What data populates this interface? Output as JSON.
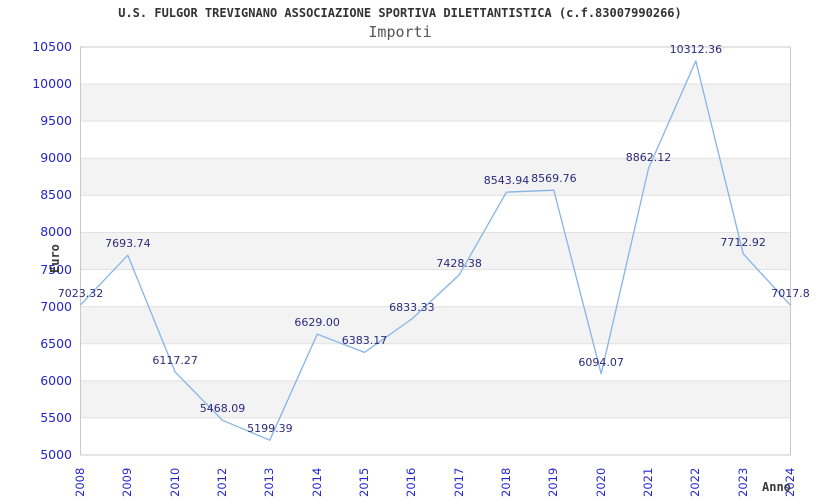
{
  "header": {
    "title": "U.S. FULGOR TREVIGNANO ASSOCIAZIONE SPORTIVA DILETTANTISTICA (c.f.83007990266)",
    "subtitle": "Importi"
  },
  "chart_data": {
    "type": "line",
    "title": "U.S. FULGOR TREVIGNANO ASSOCIAZIONE SPORTIVA DILETTANTISTICA (c.f.83007990266)",
    "subtitle": "Importi",
    "xlabel": "Anno",
    "ylabel": "Euro",
    "x": [
      2008,
      2009,
      2010,
      2012,
      2013,
      2014,
      2015,
      2016,
      2017,
      2018,
      2019,
      2020,
      2021,
      2022,
      2023,
      2024
    ],
    "values": [
      7023.32,
      7693.74,
      6117.27,
      5468.09,
      5199.39,
      6629.0,
      6383.17,
      6833.33,
      7428.38,
      8543.94,
      8569.76,
      6094.07,
      8862.12,
      10312.36,
      7712.92,
      7017.8
    ],
    "point_labels": [
      "7023.32",
      "7693.74",
      "6117.27",
      "5468.09",
      "5199.39",
      "6629.00",
      "6383.17",
      "6833.33",
      "7428.38",
      "8543.94",
      "8569.76",
      "6094.07",
      "8862.12",
      "10312.36",
      "7712.92",
      "7017.8"
    ],
    "ylim": [
      5000,
      10500
    ],
    "ytick_step": 500,
    "grid": "alternating-horizontal-bands",
    "legend": "none",
    "colors": {
      "line": "#85b5e7",
      "tick_label": "#2525cd",
      "point_label": "#2b2b7d",
      "band": "#f3f3f3",
      "gridline": "#e2e2e2",
      "plot_border": "#c9c9c9",
      "title": "#333333",
      "subtitle": "#565656",
      "axis_title": "#3a3a3a"
    }
  }
}
